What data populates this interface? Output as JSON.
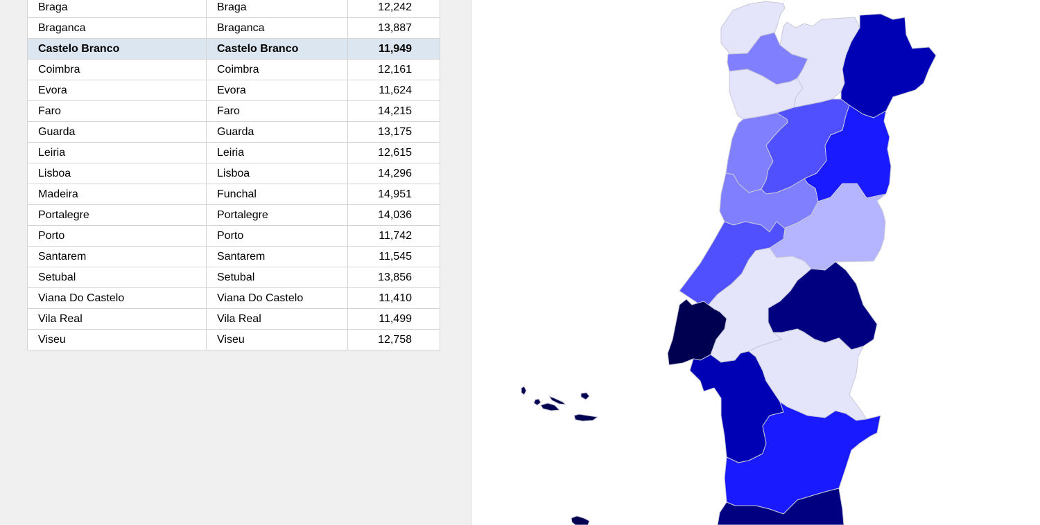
{
  "table": {
    "rows": [
      {
        "district": "Braga",
        "capital": "Braga",
        "value": "12,242",
        "selected": false
      },
      {
        "district": "Braganca",
        "capital": "Braganca",
        "value": "13,887",
        "selected": false
      },
      {
        "district": "Castelo Branco",
        "capital": "Castelo Branco",
        "value": "11,949",
        "selected": true
      },
      {
        "district": "Coimbra",
        "capital": "Coimbra",
        "value": "12,161",
        "selected": false
      },
      {
        "district": "Evora",
        "capital": "Evora",
        "value": "11,624",
        "selected": false
      },
      {
        "district": "Faro",
        "capital": "Faro",
        "value": "14,215",
        "selected": false
      },
      {
        "district": "Guarda",
        "capital": "Guarda",
        "value": "13,175",
        "selected": false
      },
      {
        "district": "Leiria",
        "capital": "Leiria",
        "value": "12,615",
        "selected": false
      },
      {
        "district": "Lisboa",
        "capital": "Lisboa",
        "value": "14,296",
        "selected": false
      },
      {
        "district": "Madeira",
        "capital": "Funchal",
        "value": "14,951",
        "selected": false
      },
      {
        "district": "Portalegre",
        "capital": "Portalegre",
        "value": "14,036",
        "selected": false
      },
      {
        "district": "Porto",
        "capital": "Porto",
        "value": "11,742",
        "selected": false
      },
      {
        "district": "Santarem",
        "capital": "Santarem",
        "value": "11,545",
        "selected": false
      },
      {
        "district": "Setubal",
        "capital": "Setubal",
        "value": "13,856",
        "selected": false
      },
      {
        "district": "Viana Do Castelo",
        "capital": "Viana Do Castelo",
        "value": "11,410",
        "selected": false
      },
      {
        "district": "Vila Real",
        "capital": "Vila Real",
        "value": "11,499",
        "selected": false
      },
      {
        "district": "Viseu",
        "capital": "Viseu",
        "value": "12,758",
        "selected": false
      }
    ]
  },
  "map": {
    "regions": [
      {
        "id": "viana-do-castelo",
        "color": "#e4e4fa"
      },
      {
        "id": "braga",
        "color": "#8080ff"
      },
      {
        "id": "porto",
        "color": "#e4e4fa"
      },
      {
        "id": "vila-real",
        "color": "#e4e4fa"
      },
      {
        "id": "braganca",
        "color": "#0000b4"
      },
      {
        "id": "aveiro",
        "color": "#8080ff"
      },
      {
        "id": "viseu",
        "color": "#5050ff"
      },
      {
        "id": "guarda",
        "color": "#1a1aff"
      },
      {
        "id": "coimbra",
        "color": "#8080ff"
      },
      {
        "id": "castelo-branco",
        "color": "#b4b4ff"
      },
      {
        "id": "leiria",
        "color": "#5050ff"
      },
      {
        "id": "santarem",
        "color": "#e4e4fa"
      },
      {
        "id": "portalegre",
        "color": "#000080"
      },
      {
        "id": "lisboa",
        "color": "#000050"
      },
      {
        "id": "setubal",
        "color": "#0000b4"
      },
      {
        "id": "evora",
        "color": "#e4e4fa"
      },
      {
        "id": "beja",
        "color": "#1a1aff"
      },
      {
        "id": "faro",
        "color": "#000080"
      },
      {
        "id": "azores",
        "color": "#000050"
      },
      {
        "id": "madeira",
        "color": "#000050"
      }
    ]
  }
}
